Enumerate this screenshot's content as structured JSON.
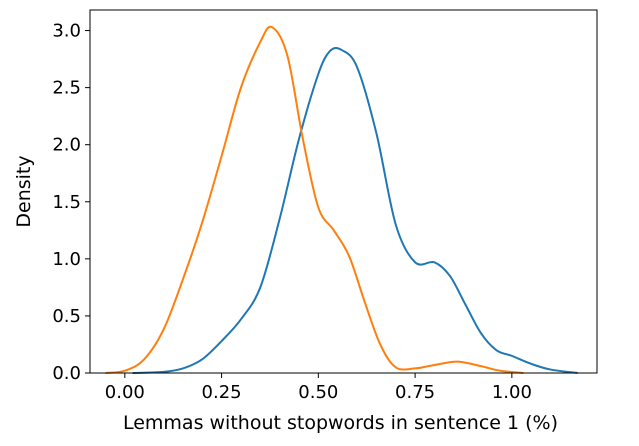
{
  "chart_data": {
    "type": "line",
    "title": "",
    "xlabel": "Lemmas without stopwords in sentence 1 (%)",
    "ylabel": "Density",
    "xlim": [
      -0.09,
      1.22
    ],
    "ylim": [
      0,
      3.18
    ],
    "x_ticks": [
      0.0,
      0.25,
      0.5,
      0.75,
      1.0
    ],
    "x_tick_labels": [
      "0.00",
      "0.25",
      "0.50",
      "0.75",
      "1.00"
    ],
    "y_ticks": [
      0.0,
      0.5,
      1.0,
      1.5,
      2.0,
      2.5,
      3.0
    ],
    "y_tick_labels": [
      "0.0",
      "0.5",
      "1.0",
      "1.5",
      "2.0",
      "2.5",
      "3.0"
    ],
    "grid": false,
    "legend": "none",
    "series": [
      {
        "color": "#1f77b4",
        "x": [
          0.02,
          0.1,
          0.15,
          0.2,
          0.25,
          0.3,
          0.35,
          0.4,
          0.45,
          0.5,
          0.53,
          0.56,
          0.6,
          0.65,
          0.7,
          0.75,
          0.8,
          0.84,
          0.88,
          0.92,
          0.96,
          1.0,
          1.05,
          1.1,
          1.17
        ],
        "y": [
          0.0,
          0.01,
          0.04,
          0.12,
          0.28,
          0.47,
          0.75,
          1.35,
          2.05,
          2.62,
          2.82,
          2.83,
          2.68,
          2.1,
          1.3,
          0.97,
          0.97,
          0.85,
          0.6,
          0.35,
          0.2,
          0.15,
          0.08,
          0.03,
          0.0
        ]
      },
      {
        "color": "#ff7f0e",
        "x": [
          -0.05,
          0.0,
          0.05,
          0.1,
          0.15,
          0.2,
          0.25,
          0.3,
          0.35,
          0.38,
          0.42,
          0.46,
          0.5,
          0.54,
          0.58,
          0.62,
          0.66,
          0.7,
          0.75,
          0.8,
          0.86,
          0.92,
          0.97,
          1.03
        ],
        "y": [
          0.0,
          0.02,
          0.12,
          0.38,
          0.82,
          1.32,
          1.9,
          2.5,
          2.9,
          3.03,
          2.78,
          2.05,
          1.45,
          1.25,
          1.02,
          0.62,
          0.25,
          0.05,
          0.04,
          0.07,
          0.1,
          0.06,
          0.02,
          0.0
        ]
      }
    ]
  }
}
